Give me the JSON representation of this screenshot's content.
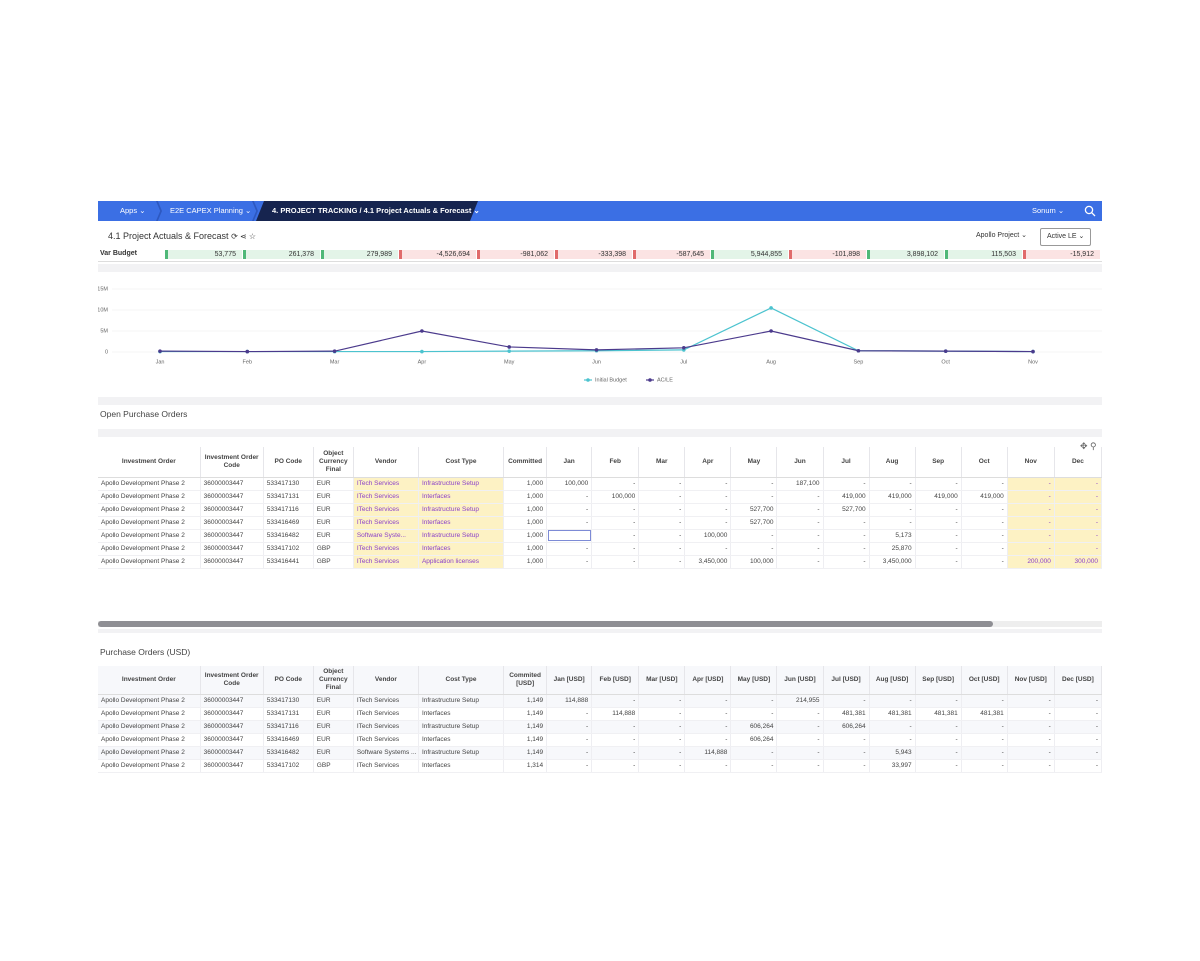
{
  "nav": {
    "items": [
      "Apps",
      "E2E CAPEX Planning",
      "4. PROJECT TRACKING / 4.1 Project Actuals & Forecast"
    ],
    "user": "Sonum"
  },
  "header": {
    "title": "4.1 Project Actuals & Forecast",
    "filters": [
      "Apollo Project",
      "Active LE"
    ]
  },
  "var_budget": {
    "label": "Var Budget",
    "values": [
      "53,775",
      "261,378",
      "279,989",
      "-4,526,694",
      "-981,062",
      "-333,398",
      "-587,645",
      "5,944,855",
      "-101,898",
      "3,898,102",
      "115,503",
      "-15,912"
    ]
  },
  "chart_data": {
    "type": "line",
    "categories": [
      "Jan",
      "Feb",
      "Mar",
      "Apr",
      "May",
      "Jun",
      "Jul",
      "Aug",
      "Sep",
      "Oct",
      "Nov"
    ],
    "series": [
      {
        "name": "Initial Budget",
        "color": "#4cc3cf",
        "values": [
          100000,
          100000,
          100000,
          100000,
          200000,
          300000,
          500000,
          10500000,
          300000,
          200000,
          100000
        ]
      },
      {
        "name": "AC/LE",
        "color": "#4b3a8c",
        "values": [
          200000,
          100000,
          200000,
          5000000,
          1200000,
          500000,
          1000000,
          5000000,
          300000,
          200000,
          100000
        ]
      }
    ],
    "ylim": [
      0,
      15000000
    ],
    "yticks": [
      0,
      {
        "value": 5000000,
        "label": "5M"
      },
      {
        "value": 10000000,
        "label": "10M"
      },
      {
        "value": 15000000,
        "label": "15M"
      }
    ],
    "grid": true,
    "legend": "bottom"
  },
  "open_po": {
    "title": "Open Purchase Orders",
    "columns": [
      "Investment Order",
      "Investment Order Code",
      "PO Code",
      "Object Currency Final",
      "Vendor",
      "Cost Type",
      "Committed",
      "Jan",
      "Feb",
      "Mar",
      "Apr",
      "May",
      "Jun",
      "Jul",
      "Aug",
      "Sep",
      "Oct",
      "Nov",
      "Dec"
    ],
    "rows": [
      [
        "Apollo Development Phase 2",
        "36000003447",
        "533417130",
        "EUR",
        "ITech Services",
        "Infrastructure Setup",
        "1,000",
        "100,000",
        "-",
        "-",
        "-",
        "-",
        "187,100",
        "-",
        "-",
        "-",
        "-",
        "-",
        "-"
      ],
      [
        "Apollo Development Phase 2",
        "36000003447",
        "533417131",
        "EUR",
        "ITech Services",
        "Interfaces",
        "1,000",
        "-",
        "100,000",
        "-",
        "-",
        "-",
        "-",
        "419,000",
        "419,000",
        "419,000",
        "419,000",
        "-",
        "-"
      ],
      [
        "Apollo Development Phase 2",
        "36000003447",
        "533417116",
        "EUR",
        "ITech Services",
        "Infrastructure Setup",
        "1,000",
        "-",
        "-",
        "-",
        "-",
        "527,700",
        "-",
        "527,700",
        "-",
        "-",
        "-",
        "-",
        "-"
      ],
      [
        "Apollo Development Phase 2",
        "36000003447",
        "533416469",
        "EUR",
        "ITech Services",
        "Interfaces",
        "1,000",
        "-",
        "-",
        "-",
        "-",
        "527,700",
        "-",
        "-",
        "-",
        "-",
        "-",
        "-",
        "-"
      ],
      [
        "Apollo Development Phase 2",
        "36000003447",
        "533416482",
        "EUR",
        "Software Syste...",
        "Infrastructure Setup",
        "1,000",
        null,
        "-",
        "-",
        "100,000",
        "-",
        "-",
        "-",
        "5,173",
        "-",
        "-",
        "-",
        "-"
      ],
      [
        "Apollo Development Phase 2",
        "36000003447",
        "533417102",
        "GBP",
        "ITech Services",
        "Interfaces",
        "1,000",
        "-",
        "-",
        "-",
        "-",
        "-",
        "-",
        "-",
        "25,870",
        "-",
        "-",
        "-",
        "-"
      ],
      [
        "Apollo Development Phase 2",
        "36000003447",
        "533416441",
        "GBP",
        "ITech Services",
        "Application licenses",
        "1,000",
        "-",
        "-",
        "-",
        "3,450,000",
        "100,000",
        "-",
        "-",
        "3,450,000",
        "-",
        "-",
        "200,000",
        "300,000"
      ]
    ]
  },
  "usd_po": {
    "title": "Purchase Orders (USD)",
    "columns": [
      "Investment Order",
      "Investment Order Code",
      "PO Code",
      "Object Currency Final",
      "Vendor",
      "Cost Type",
      "Commited [USD]",
      "Jan [USD]",
      "Feb [USD]",
      "Mar [USD]",
      "Apr [USD]",
      "May [USD]",
      "Jun [USD]",
      "Jul [USD]",
      "Aug [USD]",
      "Sep [USD]",
      "Oct [USD]",
      "Nov [USD]",
      "Dec [USD]"
    ],
    "rows": [
      [
        "Apollo Development Phase 2",
        "36000003447",
        "533417130",
        "EUR",
        "ITech Services",
        "Infrastructure Setup",
        "1,149",
        "114,888",
        "-",
        "-",
        "-",
        "-",
        "214,955",
        "-",
        "-",
        "-",
        "-",
        "-",
        "-"
      ],
      [
        "Apollo Development Phase 2",
        "36000003447",
        "533417131",
        "EUR",
        "ITech Services",
        "Interfaces",
        "1,149",
        "-",
        "114,888",
        "-",
        "-",
        "-",
        "-",
        "481,381",
        "481,381",
        "481,381",
        "481,381",
        "-",
        "-"
      ],
      [
        "Apollo Development Phase 2",
        "36000003447",
        "533417116",
        "EUR",
        "ITech Services",
        "Infrastructure Setup",
        "1,149",
        "-",
        "-",
        "-",
        "-",
        "606,264",
        "-",
        "606,264",
        "-",
        "-",
        "-",
        "-",
        "-"
      ],
      [
        "Apollo Development Phase 2",
        "36000003447",
        "533416469",
        "EUR",
        "ITech Services",
        "Interfaces",
        "1,149",
        "-",
        "-",
        "-",
        "-",
        "606,264",
        "-",
        "-",
        "-",
        "-",
        "-",
        "-",
        "-"
      ],
      [
        "Apollo Development Phase 2",
        "36000003447",
        "533416482",
        "EUR",
        "Software Systems ...",
        "Infrastructure Setup",
        "1,149",
        "-",
        "-",
        "-",
        "114,888",
        "-",
        "-",
        "-",
        "5,943",
        "-",
        "-",
        "-",
        "-"
      ],
      [
        "Apollo Development Phase 2",
        "36000003447",
        "533417102",
        "GBP",
        "ITech Services",
        "Interfaces",
        "1,314",
        "-",
        "-",
        "-",
        "-",
        "-",
        "-",
        "-",
        "33,997",
        "-",
        "-",
        "-",
        "-"
      ]
    ]
  }
}
